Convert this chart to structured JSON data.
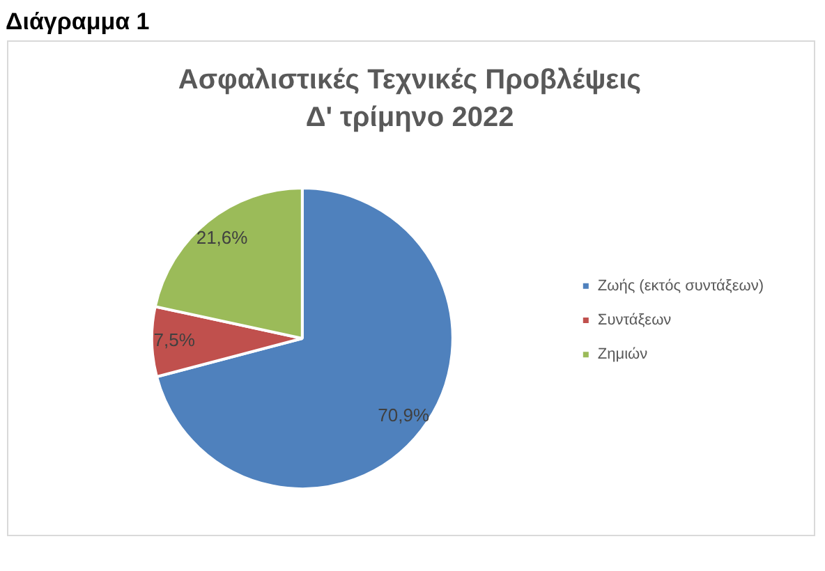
{
  "chart_data": {
    "type": "pie",
    "title": "Ασφαλιστικές Τεχνικές Προβλέψεις",
    "subtitle": "Δ' τρίμηνο 2022",
    "annotations": [
      "Διάγραμμα 1"
    ],
    "categories": [
      "Ζωής (εκτός συντάξεων)",
      "Συντάξεων",
      "Ζημιών"
    ],
    "values": [
      70.9,
      7.5,
      21.6
    ],
    "colors": [
      "#4f81bd",
      "#c0504d",
      "#9bbb59"
    ],
    "value_labels": [
      "70,9%",
      "7,5%",
      "21,6%"
    ],
    "legend": "right"
  }
}
